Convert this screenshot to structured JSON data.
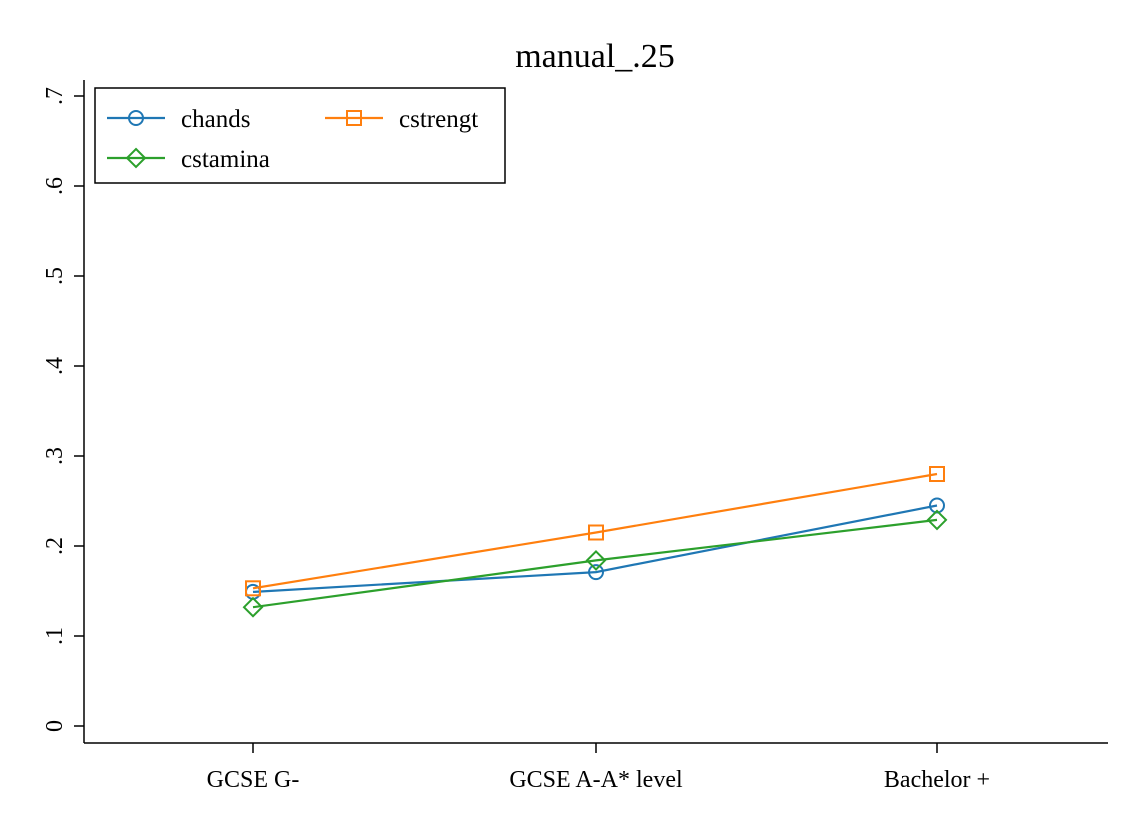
{
  "chart_data": {
    "type": "line",
    "title": "manual_.25",
    "xlabel": "",
    "ylabel": "",
    "categories": [
      "GCSE G-",
      "GCSE A-A* level",
      "Bachelor +"
    ],
    "ylim": [
      0,
      0.7
    ],
    "yticks": [
      {
        "value": 0,
        "label": "0"
      },
      {
        "value": 0.1,
        "label": ".1"
      },
      {
        "value": 0.2,
        "label": ".2"
      },
      {
        "value": 0.3,
        "label": ".3"
      },
      {
        "value": 0.4,
        "label": ".4"
      },
      {
        "value": 0.5,
        "label": ".5"
      },
      {
        "value": 0.6,
        "label": ".6"
      },
      {
        "value": 0.7,
        "label": ".7"
      }
    ],
    "grid": false,
    "legend_position": "top-left",
    "series": [
      {
        "name": "chands",
        "color": "#1f77b4",
        "marker": "circle",
        "values": [
          0.149,
          0.171,
          0.245
        ]
      },
      {
        "name": "cstrengt",
        "color": "#ff7f0e",
        "marker": "square",
        "values": [
          0.153,
          0.215,
          0.28
        ]
      },
      {
        "name": "cstamina",
        "color": "#2ca02c",
        "marker": "diamond",
        "values": [
          0.132,
          0.184,
          0.229
        ]
      }
    ]
  }
}
